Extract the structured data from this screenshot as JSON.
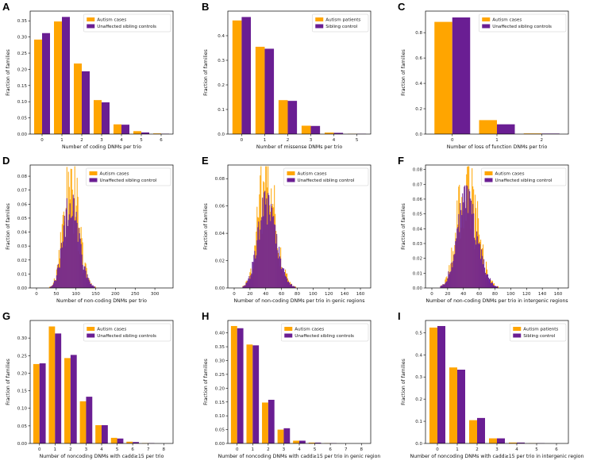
{
  "colors": {
    "case": "#FFA500",
    "control": "#6A1E93",
    "axis": "#000000"
  },
  "chart_data": [
    {
      "letter": "A",
      "type": "bar",
      "title": "",
      "xlabel": "Number of coding DNMs per trio",
      "ylabel": "Fraction of families",
      "categories": [
        "0",
        "1",
        "2",
        "3",
        "4",
        "5",
        "6"
      ],
      "series": [
        {
          "name": "Autism cases",
          "values": [
            0.292,
            0.348,
            0.218,
            0.105,
            0.03,
            0.009,
            0.002
          ]
        },
        {
          "name": "Unaffected sibling controls",
          "values": [
            0.312,
            0.362,
            0.194,
            0.098,
            0.029,
            0.005,
            0.001
          ]
        }
      ],
      "yticks": [
        "0.00",
        "0.05",
        "0.10",
        "0.15",
        "0.20",
        "0.25",
        "0.30",
        "0.35"
      ],
      "ylim": [
        0,
        0.38
      ],
      "legend": "top-right"
    },
    {
      "letter": "B",
      "type": "bar",
      "title": "",
      "xlabel": "Number of missense DNMs per trio",
      "ylabel": "Fraction of families",
      "categories": [
        "0",
        "1",
        "2",
        "3",
        "4",
        "5"
      ],
      "series": [
        {
          "name": "Autism patients",
          "values": [
            0.462,
            0.355,
            0.138,
            0.034,
            0.006,
            0.001
          ]
        },
        {
          "name": "Sibling control",
          "values": [
            0.476,
            0.347,
            0.135,
            0.033,
            0.005,
            0.001
          ]
        }
      ],
      "yticks": [
        "0.0",
        "0.1",
        "0.2",
        "0.3",
        "0.4"
      ],
      "ylim": [
        0,
        0.5
      ],
      "legend": "top-right"
    },
    {
      "letter": "C",
      "type": "bar",
      "title": "",
      "xlabel": "Number of loss of function DNMs per trio",
      "ylabel": "Fraction of families",
      "categories": [
        "0",
        "1",
        "2"
      ],
      "series": [
        {
          "name": "Autism cases",
          "values": [
            0.885,
            0.11,
            0.005
          ]
        },
        {
          "name": "Unaffected sibling controls",
          "values": [
            0.92,
            0.077,
            0.004
          ]
        }
      ],
      "yticks": [
        "0.0",
        "0.2",
        "0.4",
        "0.6",
        "0.8"
      ],
      "ylim": [
        0,
        0.97
      ],
      "legend": "top-right"
    },
    {
      "letter": "D",
      "type": "histogram",
      "title": "",
      "xlabel": "Number of non-coding DNMs per trio",
      "ylabel": "Fraction of families",
      "mode": 85,
      "spread": 17,
      "x_start": 25,
      "x_end": 200,
      "peaks": {
        "case": 0.085,
        "control": 0.072
      },
      "series": [
        {
          "name": "Autism cases"
        },
        {
          "name": "Unaffected sibling control"
        }
      ],
      "xticks": [
        "0",
        "50",
        "100",
        "150",
        "200",
        "250",
        "300"
      ],
      "xlim": [
        0,
        330
      ],
      "yticks": [
        "0.00",
        "0.01",
        "0.02",
        "0.03",
        "0.04",
        "0.05",
        "0.06",
        "0.07",
        "0.08"
      ],
      "ylim": [
        0,
        0.088
      ],
      "legend": "top-right"
    },
    {
      "letter": "E",
      "type": "histogram",
      "title": "",
      "xlabel": "Number of non-coding DNMs per trio in genic regions",
      "ylabel": "Fraction of families",
      "mode": 40,
      "spread": 10,
      "x_start": 10,
      "x_end": 110,
      "peaks": {
        "case": 0.085,
        "control": 0.072
      },
      "series": [
        {
          "name": "Autism cases"
        },
        {
          "name": "Unaffected sibling control"
        }
      ],
      "xticks": [
        "0",
        "20",
        "40",
        "60",
        "80",
        "100",
        "120",
        "140",
        "160"
      ],
      "xlim": [
        0,
        165
      ],
      "yticks": [
        "0.00",
        "0.02",
        "0.04",
        "0.06",
        "0.08"
      ],
      "ylim": [
        0,
        0.09
      ],
      "legend": "top-right"
    },
    {
      "letter": "F",
      "type": "histogram",
      "title": "",
      "xlabel": "Number of non-coding DNMs per trio in intergenic regions",
      "ylabel": "Fraction of families",
      "mode": 43,
      "spread": 11,
      "x_start": 10,
      "x_end": 110,
      "peaks": {
        "case": 0.08,
        "control": 0.07
      },
      "series": [
        {
          "name": "Autism cases"
        },
        {
          "name": "Unaffected sibling control"
        }
      ],
      "xticks": [
        "0",
        "20",
        "40",
        "60",
        "80",
        "100",
        "120",
        "140",
        "160"
      ],
      "xlim": [
        0,
        165
      ],
      "yticks": [
        "0.00",
        "0.01",
        "0.02",
        "0.03",
        "0.04",
        "0.05",
        "0.06",
        "0.07",
        "0.08"
      ],
      "ylim": [
        0,
        0.083
      ],
      "legend": "top-right"
    },
    {
      "letter": "G",
      "type": "bar",
      "title": "",
      "xlabel": "Number of noncoding DNMs with cadd≥15 per trio",
      "ylabel": "Fraction of families",
      "categories": [
        "0",
        "1",
        "2",
        "3",
        "4",
        "5",
        "6",
        "7",
        "8"
      ],
      "series": [
        {
          "name": "Autism cases",
          "values": [
            0.226,
            0.333,
            0.243,
            0.12,
            0.052,
            0.016,
            0.005,
            0.001,
            0.0
          ]
        },
        {
          "name": "Unaffected sibling controls",
          "values": [
            0.228,
            0.313,
            0.252,
            0.133,
            0.052,
            0.014,
            0.004,
            0.001,
            0.0
          ]
        }
      ],
      "yticks": [
        "0.00",
        "0.05",
        "0.10",
        "0.15",
        "0.20",
        "0.25",
        "0.30"
      ],
      "ylim": [
        0,
        0.35
      ],
      "legend": "top-right"
    },
    {
      "letter": "H",
      "type": "bar",
      "title": "",
      "xlabel": "Number of noncoding DNMs with cadd≥15 per trio in genic region",
      "ylabel": "Fraction of families",
      "categories": [
        "0",
        "1",
        "2",
        "3",
        "4",
        "5",
        "6",
        "7",
        "8"
      ],
      "series": [
        {
          "name": "Autism cases",
          "values": [
            0.425,
            0.358,
            0.148,
            0.05,
            0.01,
            0.003,
            0.001,
            0.0,
            0.0
          ]
        },
        {
          "name": "Unaffected sibling controls",
          "values": [
            0.417,
            0.355,
            0.158,
            0.055,
            0.01,
            0.003,
            0.001,
            0.0,
            0.0
          ]
        }
      ],
      "yticks": [
        "0.00",
        "0.05",
        "0.10",
        "0.15",
        "0.20",
        "0.25",
        "0.30",
        "0.35",
        "0.40"
      ],
      "ylim": [
        0,
        0.445
      ],
      "legend": "top-right"
    },
    {
      "letter": "I",
      "type": "bar",
      "title": "",
      "xlabel": "Number of noncoding DNMs with cadd≥15 per trio in intergenic region",
      "ylabel": "Fraction of families",
      "categories": [
        "0",
        "1",
        "2",
        "3",
        "4",
        "5",
        "6"
      ],
      "series": [
        {
          "name": "Autism patients",
          "values": [
            0.523,
            0.343,
            0.105,
            0.023,
            0.004,
            0.001,
            0.0
          ]
        },
        {
          "name": "Sibling control",
          "values": [
            0.53,
            0.333,
            0.115,
            0.023,
            0.004,
            0.001,
            0.0
          ]
        }
      ],
      "yticks": [
        "0.0",
        "0.1",
        "0.2",
        "0.3",
        "0.4",
        "0.5"
      ],
      "ylim": [
        0,
        0.555
      ],
      "legend": "top-right"
    }
  ]
}
